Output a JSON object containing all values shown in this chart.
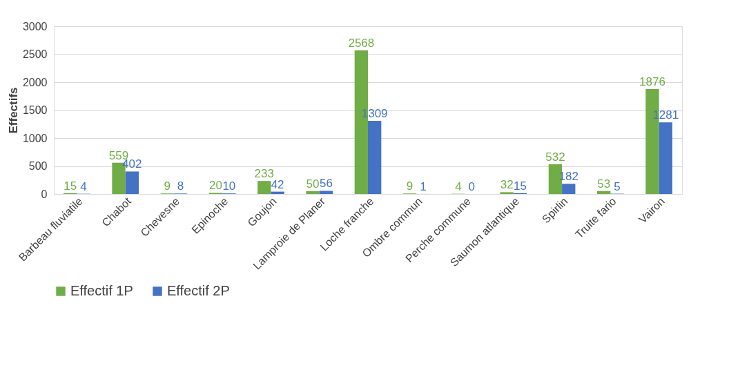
{
  "chart_data": {
    "type": "bar",
    "ylabel": "Effectifs",
    "categories": [
      "Barbeau fluviatile",
      "Chabot",
      "Chevesne",
      "Epinoche",
      "Goujon",
      "Lamproie de Planer",
      "Loche franche",
      "Ombre commun",
      "Perche commune",
      "Saumon atlantique",
      "Spirlin",
      "Truite fario",
      "Vairon"
    ],
    "series": [
      {
        "name": "Effectif 1P",
        "color": "#70ad47",
        "values": [
          15,
          559,
          9,
          20,
          233,
          50,
          2568,
          9,
          4,
          32,
          532,
          53,
          1876
        ]
      },
      {
        "name": "Effectif 2P",
        "color": "#4472c4",
        "values": [
          4,
          402,
          8,
          10,
          42,
          56,
          1309,
          1,
          0,
          15,
          182,
          5,
          1281
        ]
      }
    ],
    "ylim": [
      0,
      3000
    ],
    "yticks": [
      0,
      500,
      1000,
      1500,
      2000,
      2500,
      3000
    ],
    "grid": "y",
    "legend": "bottom",
    "data_labels": true
  }
}
